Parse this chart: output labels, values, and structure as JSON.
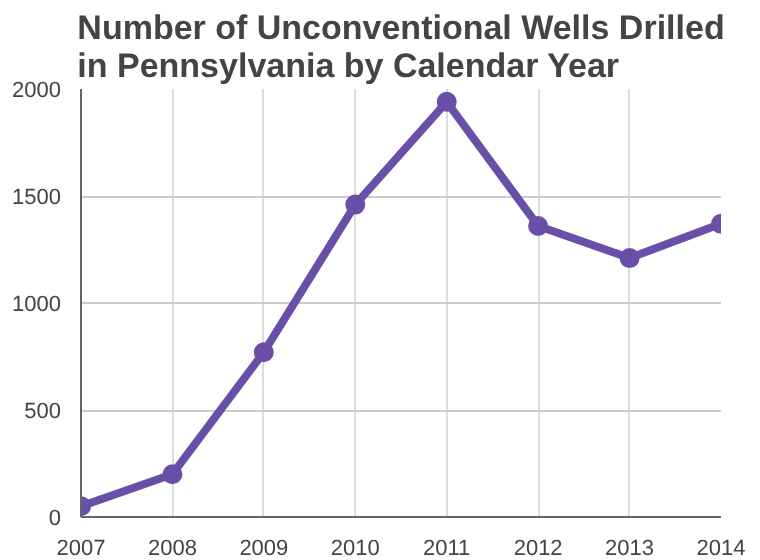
{
  "chart_data": {
    "type": "line",
    "title": "Number of Unconventional Wells Drilled\nin Pennsylvania by Calendar Year",
    "x": [
      2007,
      2008,
      2009,
      2010,
      2011,
      2012,
      2013,
      2014
    ],
    "series": [
      {
        "color": "#6a4fa8",
        "values": [
          50,
          200,
          770,
          1460,
          1940,
          1360,
          1210,
          1370
        ]
      }
    ],
    "xlim": [
      2007,
      2014
    ],
    "xticks": [
      2007,
      2008,
      2009,
      2010,
      2011,
      2012,
      2013,
      2014
    ],
    "ylim": [
      0,
      2000
    ],
    "yticks": [
      0,
      500,
      1000,
      1500,
      2000
    ],
    "grid": true,
    "marker": "circle",
    "line_style": "solid"
  }
}
